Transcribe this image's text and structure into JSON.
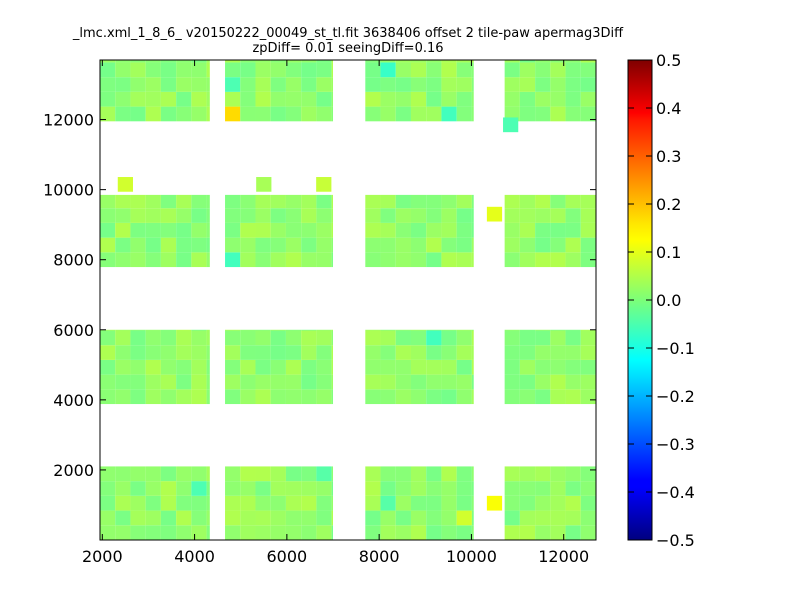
{
  "chart_data": {
    "type": "heatmap",
    "title_line1": "_lmc.xml_1_8_6_ v20150222_00049_st_tl.fit 3638406 offset 2 tile-paw apermag3Diff",
    "title_line2": "zpDiff= 0.01 seeingDiff=0.16",
    "xlim": [
      1950,
      12700
    ],
    "ylim": [
      0,
      13700
    ],
    "x_ticks": [
      2000,
      4000,
      6000,
      8000,
      10000,
      12000
    ],
    "y_ticks": [
      2000,
      4000,
      6000,
      8000,
      10000,
      12000
    ],
    "colorbar": {
      "min": -0.5,
      "max": 0.5,
      "ticks": [
        0.5,
        0.4,
        0.3,
        0.2,
        0.1,
        0.0,
        -0.1,
        -0.2,
        -0.3,
        -0.4,
        -0.5
      ],
      "tick_labels": [
        "0.5",
        "0.4",
        "0.3",
        "0.2",
        "0.1",
        "0.0",
        "−0.1",
        "−0.2",
        "−0.3",
        "−0.4",
        "−0.5"
      ],
      "colormap": "jet"
    },
    "cell_size": [
      330,
      420
    ],
    "column_blocks_x": [
      [
        1950,
        4330
      ],
      [
        4660,
        7000
      ],
      [
        7700,
        10050
      ],
      [
        10720,
        12700
      ]
    ],
    "row_blocks_y": [
      [
        0,
        2100
      ],
      [
        3880,
        6000
      ],
      [
        7790,
        9850
      ],
      [
        11950,
        13700
      ]
    ],
    "default_value": 0.02,
    "anomalies": [
      {
        "x": 4800,
        "y": 12250,
        "value": 0.16
      },
      {
        "x": 2500,
        "y": 10150,
        "value": 0.08
      },
      {
        "x": 5500,
        "y": 10150,
        "value": 0.04
      },
      {
        "x": 6800,
        "y": 10150,
        "value": 0.07
      },
      {
        "x": 10500,
        "y": 9300,
        "value": 0.1
      },
      {
        "x": 4800,
        "y": 7950,
        "value": -0.06
      },
      {
        "x": 8150,
        "y": 13450,
        "value": -0.07
      },
      {
        "x": 4800,
        "y": 12950,
        "value": -0.05
      },
      {
        "x": 10850,
        "y": 11850,
        "value": -0.05
      },
      {
        "x": 9350,
        "y": 12350,
        "value": -0.06
      },
      {
        "x": 3950,
        "y": 1650,
        "value": -0.05
      },
      {
        "x": 8150,
        "y": 1150,
        "value": -0.04
      },
      {
        "x": 6800,
        "y": 1750,
        "value": -0.04
      },
      {
        "x": 9150,
        "y": 5750,
        "value": -0.06
      },
      {
        "x": 10500,
        "y": 1050,
        "value": 0.12
      },
      {
        "x": 9850,
        "y": 450,
        "value": 0.08
      }
    ]
  }
}
